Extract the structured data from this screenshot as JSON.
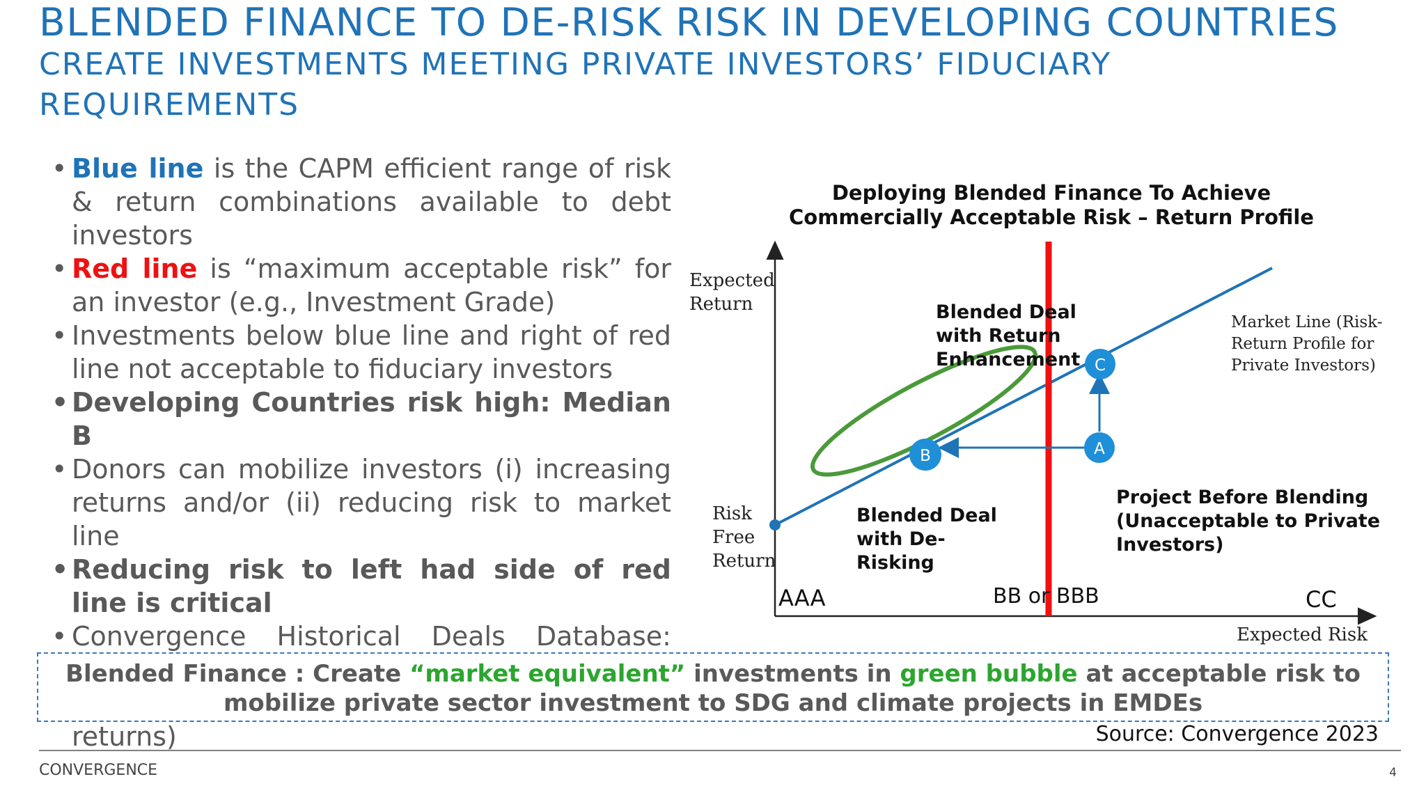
{
  "header": {
    "title": "BLENDED FINANCE TO DE-RISK RISK IN DEVELOPING COUNTRIES",
    "subtitle": "CREATE INVESTMENTS MEETING PRIVATE INVESTORS’ FIDUCIARY REQUIREMENTS"
  },
  "bullets": [
    {
      "lead": "Blue line",
      "text": " is the CAPM efficient range of risk & return combinations available to debt investors"
    },
    {
      "lead": "Red line",
      "text": " is “maximum acceptable risk” for an investor (e.g., Investment Grade)"
    },
    {
      "text": "Investments below blue line and right of red line not acceptable to fiduciary investors"
    },
    {
      "text": "Developing Countries risk high: Median B"
    },
    {
      "text": "Donors can mobilize investors (i) increasing returns and/or (ii) reducing risk to market line"
    },
    {
      "text": "Reducing risk to left had side of red line is critical"
    },
    {
      "text": "Convergence Historical Deals Database: 800+ transactions demonstrating best approaches - reduce risk (vs. enhance returns)"
    }
  ],
  "diagram": {
    "title_line1": "Deploying Blended Finance To Achieve",
    "title_line2": "Commercially Acceptable Risk – Return Profile",
    "y_axis_line1": "Expected",
    "y_axis_line2": "Return",
    "x_axis": "Expected Risk",
    "risk_free_1": "Risk",
    "risk_free_2": "Free",
    "risk_free_3": "Return",
    "market_line_1": "Market Line (Risk-",
    "market_line_2": "Return Profile for",
    "market_line_3": "Private Investors)",
    "enhancement_1": "Blended Deal",
    "enhancement_2": "with Return",
    "enhancement_3": "Enhancement",
    "derisking_1": "Blended Deal",
    "derisking_2": "with De-",
    "derisking_3": "Risking",
    "project_1": "Project Before Blending",
    "project_2": "(Unacceptable to Private",
    "project_3": "Investors)",
    "tick_aaa": "AAA",
    "tick_bb": "BB or BBB",
    "tick_cc": "CC",
    "point_a": "A",
    "point_b": "B",
    "point_c": "C",
    "colors": {
      "market_line": "#1f73b7",
      "max_risk_line": "#ee1111",
      "bubble": "#4a9a3a",
      "point": "#1f8fd8"
    }
  },
  "callout": {
    "part1": "Blended Finance : Create ",
    "part2": "“market equivalent”",
    "part3": " investments in ",
    "part4": "green bubble",
    "part5": " at acceptable risk to mobilize private sector investment to SDG and climate projects in EMDEs"
  },
  "source": "Source: Convergence 2023",
  "footer": "CONVERGENCE",
  "page_number": "4"
}
